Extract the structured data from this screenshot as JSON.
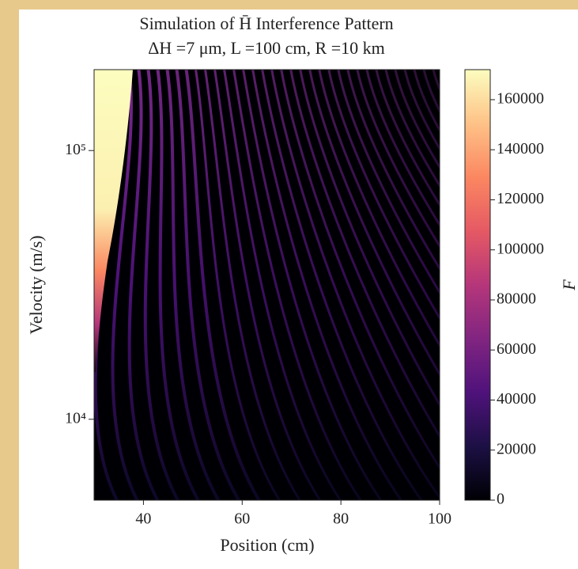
{
  "chart_data": {
    "type": "heatmap",
    "title": "Simulation of H̄ Interference Pattern",
    "subtitle": "ΔH =7 μm, L =100 cm, R =10 km",
    "x_label": "Position (cm)",
    "y_label": "Velocity (m/s)",
    "colorbar_label": "F",
    "xlim": [
      30,
      100
    ],
    "xticks": [
      40,
      60,
      80,
      100
    ],
    "ylim": [
      5000,
      200000
    ],
    "yscale": "log",
    "yticks": [
      {
        "value": 10000,
        "label": "10⁴"
      },
      {
        "value": 100000,
        "label": "10⁵"
      }
    ],
    "clim": [
      0,
      172000
    ],
    "cticks": [
      0,
      20000,
      40000,
      60000,
      80000,
      100000,
      120000,
      140000,
      160000
    ],
    "colormap": "magma"
  }
}
